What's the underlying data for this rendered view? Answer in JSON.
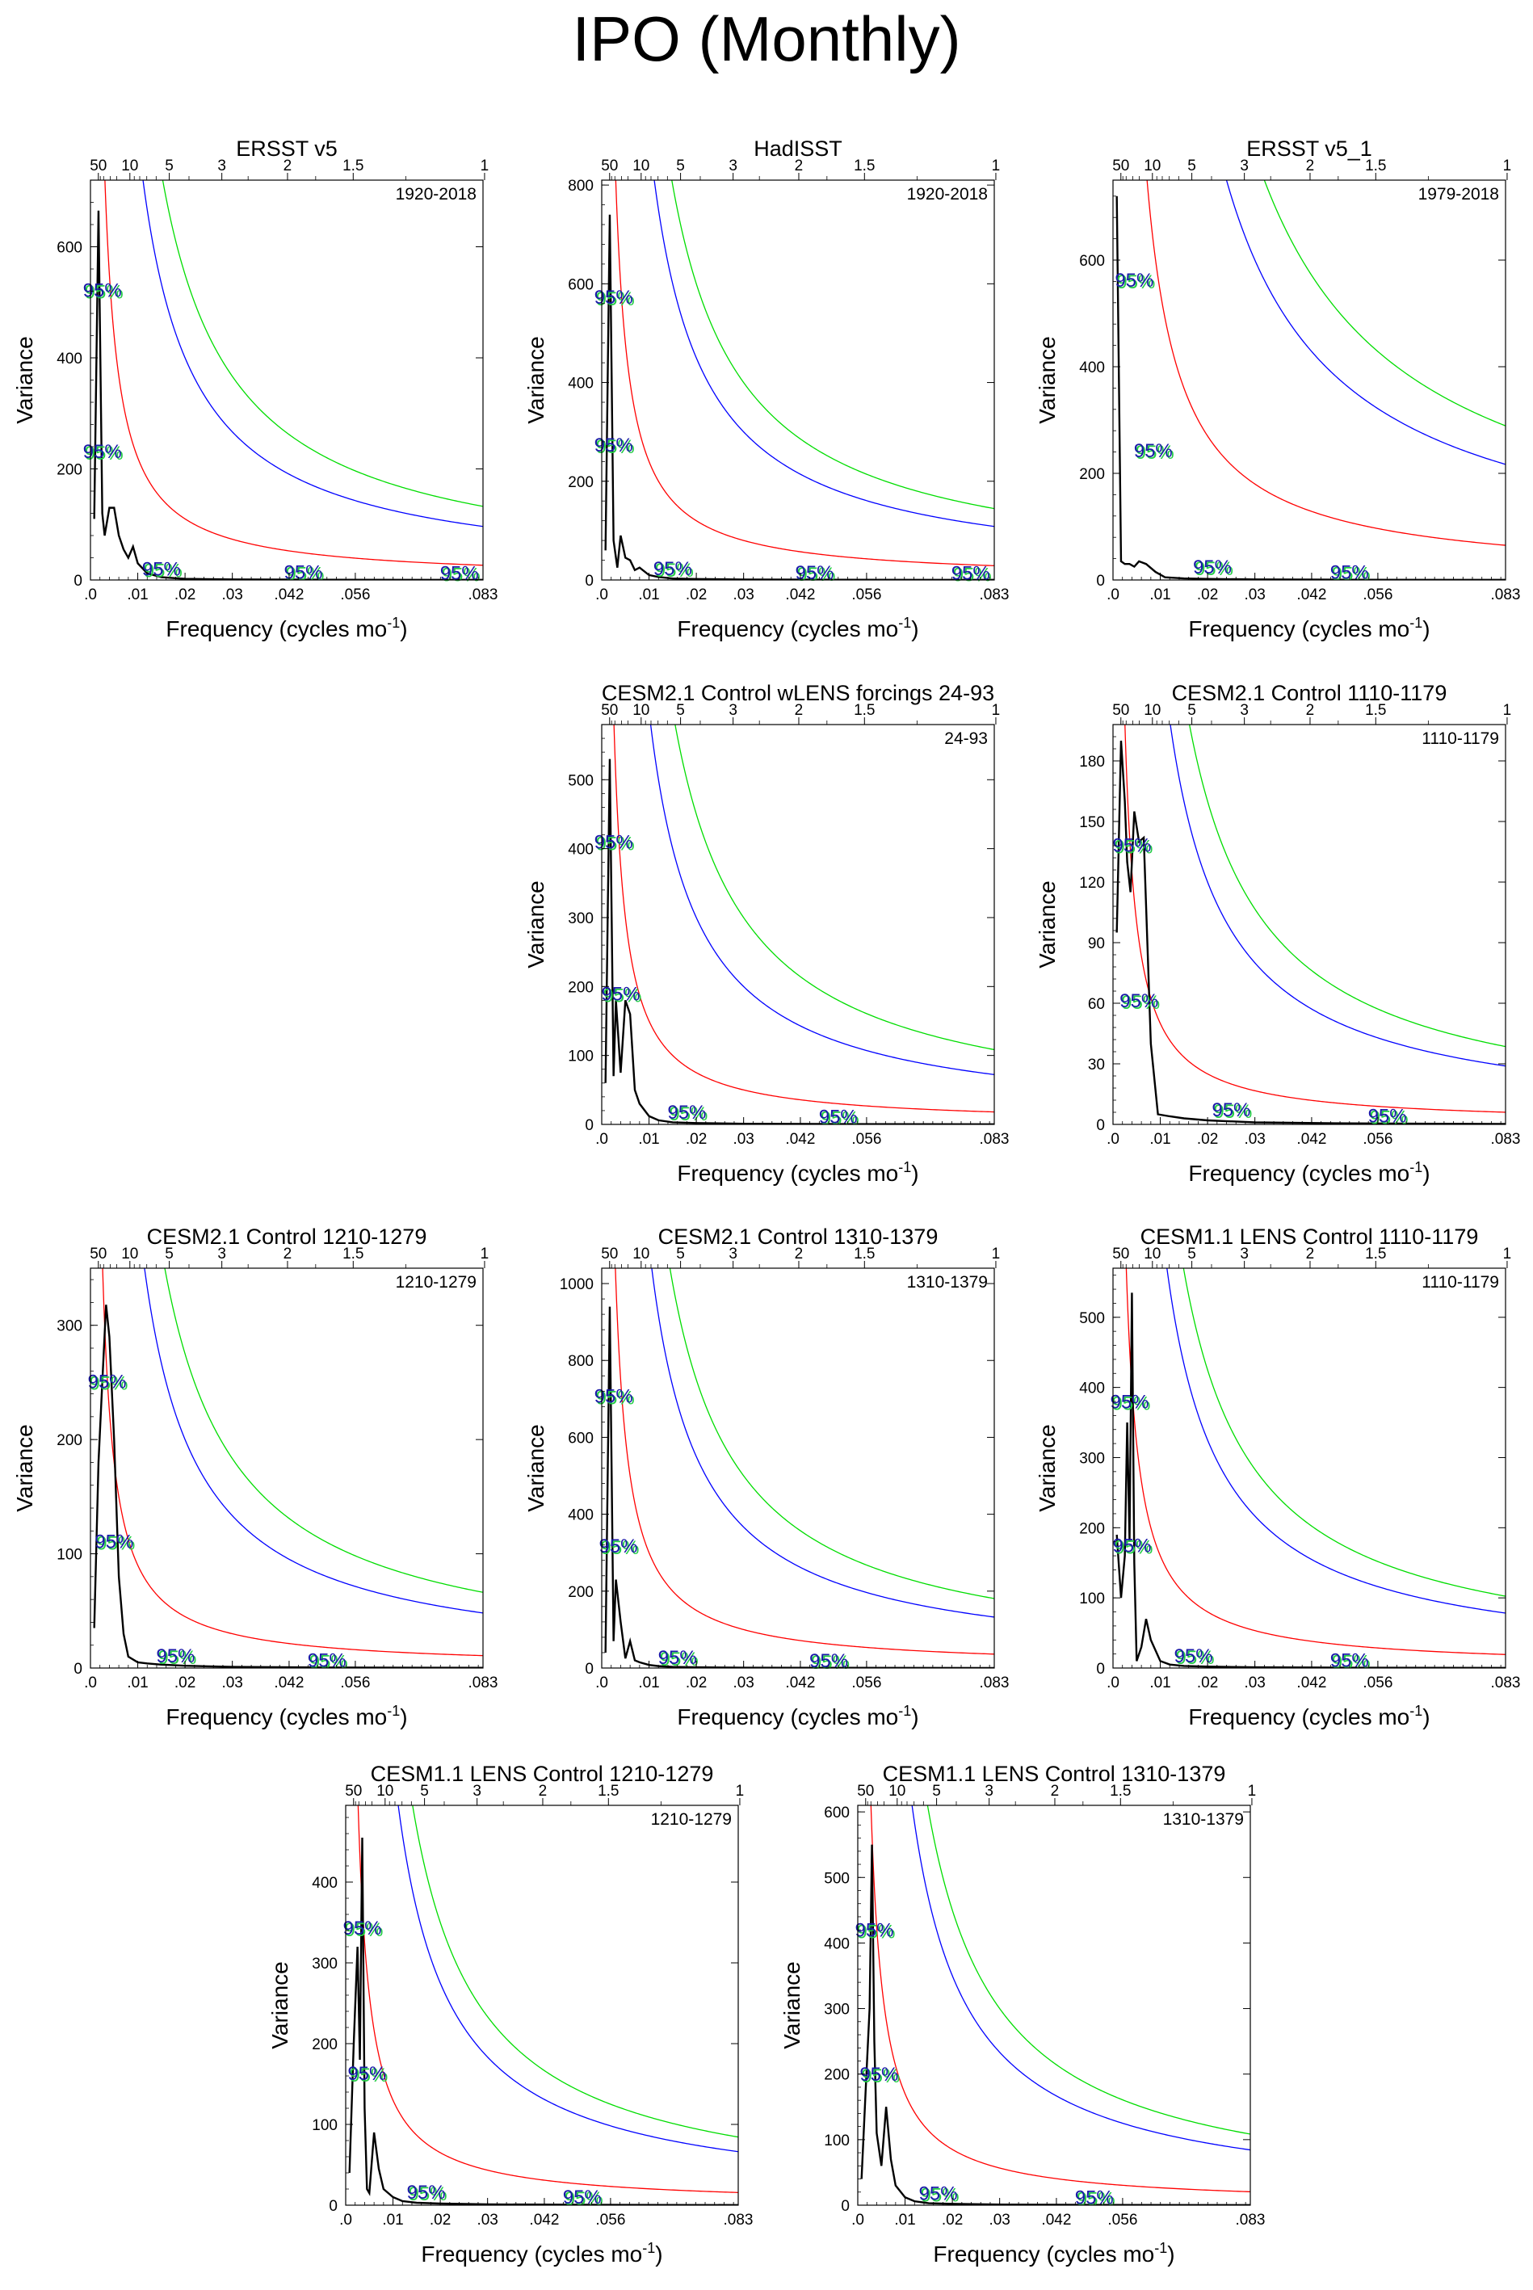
{
  "page_title": "IPO (Monthly)",
  "colors": {
    "red": "#ff0000",
    "blue": "#0000ff",
    "green": "#00dd00",
    "black": "#000000",
    "label_blue": "#1a1aa8",
    "label_green": "#22cc44"
  },
  "chart_data": [
    {
      "type": "line",
      "title": "ERSST v5",
      "period": "1920-2018",
      "ylim": [
        0,
        720
      ],
      "yticks": [
        0,
        200,
        400,
        600
      ],
      "spectrum": [
        [
          0.0008,
          110
        ],
        [
          0.0017,
          665
        ],
        [
          0.0025,
          120
        ],
        [
          0.003,
          80
        ],
        [
          0.004,
          130
        ],
        [
          0.005,
          130
        ],
        [
          0.006,
          80
        ],
        [
          0.007,
          55
        ],
        [
          0.008,
          40
        ],
        [
          0.009,
          60
        ],
        [
          0.01,
          30
        ],
        [
          0.012,
          12
        ],
        [
          0.015,
          5
        ],
        [
          0.02,
          2
        ],
        [
          0.03,
          1
        ],
        [
          0.05,
          0.5
        ],
        [
          0.083,
          0.2
        ]
      ],
      "red_amp": 2.2,
      "green_amp": 11,
      "blue_amp": 8,
      "sig_labels": [
        [
          0.0025,
          510
        ],
        [
          0.0025,
          220
        ],
        [
          0.015,
          8
        ],
        [
          0.045,
          2
        ],
        [
          0.078,
          1
        ]
      ]
    },
    {
      "type": "line",
      "title": "HadISST",
      "period": "1920-2018",
      "ylim": [
        0,
        810
      ],
      "yticks": [
        0,
        200,
        400,
        600,
        800
      ],
      "spectrum": [
        [
          0.0008,
          60
        ],
        [
          0.0017,
          740
        ],
        [
          0.0025,
          80
        ],
        [
          0.0033,
          25
        ],
        [
          0.004,
          90
        ],
        [
          0.005,
          45
        ],
        [
          0.006,
          40
        ],
        [
          0.007,
          20
        ],
        [
          0.008,
          25
        ],
        [
          0.01,
          10
        ],
        [
          0.012,
          6
        ],
        [
          0.015,
          3
        ],
        [
          0.02,
          2
        ],
        [
          0.03,
          1
        ],
        [
          0.05,
          0.5
        ],
        [
          0.083,
          0.2
        ]
      ],
      "red_amp": 2.4,
      "green_amp": 12,
      "blue_amp": 9,
      "sig_labels": [
        [
          0.0025,
          560
        ],
        [
          0.0025,
          260
        ],
        [
          0.015,
          10
        ],
        [
          0.045,
          2
        ],
        [
          0.078,
          1
        ]
      ]
    },
    {
      "type": "line",
      "title": "ERSST v5_1",
      "period": "1979-2018",
      "ylim": [
        0,
        750
      ],
      "yticks": [
        0,
        200,
        400,
        600
      ],
      "spectrum": [
        [
          0.0008,
          720
        ],
        [
          0.0017,
          35
        ],
        [
          0.0025,
          30
        ],
        [
          0.0035,
          30
        ],
        [
          0.0045,
          25
        ],
        [
          0.0055,
          35
        ],
        [
          0.007,
          30
        ],
        [
          0.009,
          15
        ],
        [
          0.011,
          5
        ],
        [
          0.015,
          3
        ],
        [
          0.02,
          2
        ],
        [
          0.03,
          1
        ],
        [
          0.05,
          0.5
        ],
        [
          0.083,
          0.2
        ]
      ],
      "red_amp": 5.4,
      "green_amp": 24,
      "blue_amp": 18,
      "sig_labels": [
        [
          0.0045,
          550
        ],
        [
          0.0085,
          230
        ],
        [
          0.021,
          12
        ],
        [
          0.05,
          2
        ]
      ]
    },
    {
      "type": "line",
      "title": "CESM2.1 Control wLENS forcings 24-93",
      "period": "24-93",
      "ylim": [
        0,
        580
      ],
      "yticks": [
        0,
        100,
        200,
        300,
        400,
        500
      ],
      "spectrum": [
        [
          0.0008,
          60
        ],
        [
          0.0017,
          530
        ],
        [
          0.0025,
          70
        ],
        [
          0.003,
          180
        ],
        [
          0.004,
          75
        ],
        [
          0.005,
          180
        ],
        [
          0.006,
          160
        ],
        [
          0.007,
          50
        ],
        [
          0.008,
          30
        ],
        [
          0.01,
          12
        ],
        [
          0.012,
          6
        ],
        [
          0.015,
          3
        ],
        [
          0.02,
          2
        ],
        [
          0.03,
          1
        ],
        [
          0.05,
          0.5
        ],
        [
          0.083,
          0.2
        ]
      ],
      "red_amp": 1.5,
      "green_amp": 9,
      "blue_amp": 6,
      "sig_labels": [
        [
          0.0025,
          400
        ],
        [
          0.004,
          180
        ],
        [
          0.018,
          8
        ],
        [
          0.05,
          2
        ]
      ]
    },
    {
      "type": "line",
      "title": "CESM2.1 Control 1110-1179",
      "period": "1110-1179",
      "ylim": [
        0,
        198
      ],
      "yticks": [
        0,
        30,
        60,
        90,
        120,
        150,
        180
      ],
      "spectrum": [
        [
          0.0008,
          95
        ],
        [
          0.0017,
          190
        ],
        [
          0.0025,
          160
        ],
        [
          0.003,
          130
        ],
        [
          0.0037,
          115
        ],
        [
          0.0045,
          155
        ],
        [
          0.0055,
          140
        ],
        [
          0.0065,
          142
        ],
        [
          0.008,
          40
        ],
        [
          0.0095,
          5
        ],
        [
          0.012,
          4
        ],
        [
          0.015,
          3
        ],
        [
          0.02,
          2
        ],
        [
          0.03,
          1
        ],
        [
          0.05,
          0.5
        ],
        [
          0.083,
          0.2
        ]
      ],
      "red_amp": 0.5,
      "green_amp": 3.2,
      "blue_amp": 2.4,
      "sig_labels": [
        [
          0.004,
          135
        ],
        [
          0.0055,
          58
        ],
        [
          0.025,
          4
        ],
        [
          0.058,
          1
        ]
      ]
    },
    {
      "type": "line",
      "title": "CESM2.1 Control 1210-1279",
      "period": "1210-1279",
      "ylim": [
        0,
        350
      ],
      "yticks": [
        0,
        100,
        200,
        300
      ],
      "spectrum": [
        [
          0.0008,
          35
        ],
        [
          0.0017,
          180
        ],
        [
          0.0025,
          250
        ],
        [
          0.0033,
          318
        ],
        [
          0.004,
          290
        ],
        [
          0.005,
          200
        ],
        [
          0.006,
          80
        ],
        [
          0.007,
          30
        ],
        [
          0.008,
          10
        ],
        [
          0.01,
          5
        ],
        [
          0.012,
          4
        ],
        [
          0.015,
          3
        ],
        [
          0.02,
          2
        ],
        [
          0.03,
          1
        ],
        [
          0.05,
          0.5
        ],
        [
          0.083,
          0.2
        ]
      ],
      "red_amp": 0.9,
      "green_amp": 5.5,
      "blue_amp": 4,
      "sig_labels": [
        [
          0.0035,
          245
        ],
        [
          0.005,
          105
        ],
        [
          0.018,
          5
        ],
        [
          0.05,
          1
        ]
      ]
    },
    {
      "type": "line",
      "title": "CESM2.1 Control 1310-1379",
      "period": "1310-1379",
      "ylim": [
        0,
        1040
      ],
      "yticks": [
        0,
        200,
        400,
        600,
        800,
        1000
      ],
      "spectrum": [
        [
          0.0008,
          40
        ],
        [
          0.0017,
          940
        ],
        [
          0.0025,
          70
        ],
        [
          0.003,
          230
        ],
        [
          0.004,
          120
        ],
        [
          0.005,
          25
        ],
        [
          0.006,
          70
        ],
        [
          0.007,
          20
        ],
        [
          0.008,
          15
        ],
        [
          0.01,
          8
        ],
        [
          0.012,
          5
        ],
        [
          0.015,
          3
        ],
        [
          0.02,
          2
        ],
        [
          0.03,
          1
        ],
        [
          0.05,
          0.5
        ],
        [
          0.083,
          0.2
        ]
      ],
      "red_amp": 3,
      "green_amp": 15,
      "blue_amp": 11,
      "sig_labels": [
        [
          0.0025,
          690
        ],
        [
          0.0035,
          300
        ],
        [
          0.016,
          10
        ],
        [
          0.048,
          2
        ]
      ]
    },
    {
      "type": "line",
      "title": "CESM1.1 LENS Control 1110-1179",
      "period": "1110-1179",
      "ylim": [
        0,
        570
      ],
      "yticks": [
        0,
        100,
        200,
        300,
        400,
        500
      ],
      "spectrum": [
        [
          0.0008,
          190
        ],
        [
          0.0017,
          100
        ],
        [
          0.0025,
          160
        ],
        [
          0.003,
          350
        ],
        [
          0.0035,
          180
        ],
        [
          0.004,
          535
        ],
        [
          0.0045,
          150
        ],
        [
          0.005,
          10
        ],
        [
          0.006,
          30
        ],
        [
          0.007,
          70
        ],
        [
          0.008,
          40
        ],
        [
          0.01,
          10
        ],
        [
          0.012,
          5
        ],
        [
          0.015,
          3
        ],
        [
          0.02,
          2
        ],
        [
          0.03,
          1
        ],
        [
          0.05,
          0.5
        ],
        [
          0.083,
          0.2
        ]
      ],
      "red_amp": 1.6,
      "green_amp": 8.5,
      "blue_amp": 6.5,
      "sig_labels": [
        [
          0.0035,
          370
        ],
        [
          0.004,
          165
        ],
        [
          0.017,
          8
        ],
        [
          0.05,
          2
        ]
      ]
    },
    {
      "type": "line",
      "title": "CESM1.1 LENS Control 1210-1279",
      "period": "1210-1279",
      "ylim": [
        0,
        495
      ],
      "yticks": [
        0,
        100,
        200,
        300,
        400
      ],
      "spectrum": [
        [
          0.0008,
          40
        ],
        [
          0.0017,
          200
        ],
        [
          0.0025,
          320
        ],
        [
          0.003,
          180
        ],
        [
          0.0035,
          455
        ],
        [
          0.004,
          120
        ],
        [
          0.0045,
          20
        ],
        [
          0.005,
          15
        ],
        [
          0.006,
          90
        ],
        [
          0.007,
          45
        ],
        [
          0.008,
          20
        ],
        [
          0.01,
          10
        ],
        [
          0.012,
          5
        ],
        [
          0.015,
          3
        ],
        [
          0.02,
          2
        ],
        [
          0.03,
          1
        ],
        [
          0.05,
          0.5
        ],
        [
          0.083,
          0.2
        ]
      ],
      "red_amp": 1.3,
      "green_amp": 7,
      "blue_amp": 5.5,
      "sig_labels": [
        [
          0.0035,
          335
        ],
        [
          0.0045,
          155
        ],
        [
          0.017,
          8
        ],
        [
          0.05,
          2
        ]
      ]
    },
    {
      "type": "line",
      "title": "CESM1.1 LENS Control 1310-1379",
      "period": "1310-1379",
      "ylim": [
        0,
        610
      ],
      "yticks": [
        0,
        100,
        200,
        300,
        400,
        500,
        600
      ],
      "spectrum": [
        [
          0.0008,
          40
        ],
        [
          0.0017,
          180
        ],
        [
          0.0025,
          300
        ],
        [
          0.003,
          550
        ],
        [
          0.0035,
          250
        ],
        [
          0.004,
          110
        ],
        [
          0.005,
          60
        ],
        [
          0.006,
          150
        ],
        [
          0.007,
          70
        ],
        [
          0.008,
          30
        ],
        [
          0.01,
          12
        ],
        [
          0.012,
          6
        ],
        [
          0.015,
          3
        ],
        [
          0.02,
          2
        ],
        [
          0.03,
          1
        ],
        [
          0.05,
          0.5
        ],
        [
          0.083,
          0.2
        ]
      ],
      "red_amp": 1.7,
      "green_amp": 9,
      "blue_amp": 7,
      "sig_labels": [
        [
          0.0035,
          410
        ],
        [
          0.0045,
          190
        ],
        [
          0.017,
          8
        ],
        [
          0.05,
          2
        ]
      ]
    }
  ],
  "shared_axes": {
    "xlabel_main": "Frequency (cycles mo",
    "xlabel_sup": "-1",
    "xlabel_end": ")",
    "ylabel": "Variance",
    "xlim": [
      0,
      0.083
    ],
    "xticks": [
      {
        "v": 0,
        "label": ".0"
      },
      {
        "v": 0.01,
        "label": ".01"
      },
      {
        "v": 0.02,
        "label": ".02"
      },
      {
        "v": 0.03,
        "label": ".03"
      },
      {
        "v": 0.042,
        "label": ".042"
      },
      {
        "v": 0.056,
        "label": ".056"
      },
      {
        "v": 0.083,
        "label": ".083"
      }
    ],
    "top_ticks": [
      {
        "period": 50,
        "label": "50"
      },
      {
        "period": 10,
        "label": "10"
      },
      {
        "period": 5,
        "label": "5"
      },
      {
        "period": 3,
        "label": "3"
      },
      {
        "period": 2,
        "label": "2"
      },
      {
        "period": 1.5,
        "label": "1.5"
      },
      {
        "period": 1,
        "label": "1"
      }
    ],
    "sig_text": "95%"
  }
}
